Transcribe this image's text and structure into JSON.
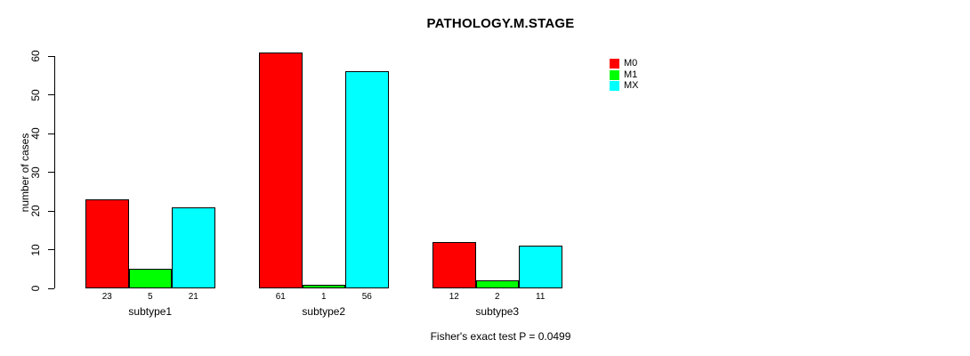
{
  "title": "PATHOLOGY.M.STAGE",
  "footer": "Fisher's exact test P = 0.0499",
  "chart_data": {
    "type": "bar",
    "grouped": true,
    "title": "PATHOLOGY.M.STAGE",
    "xlabel": "",
    "ylabel": "number of cases",
    "categories": [
      "subtype1",
      "subtype2",
      "subtype3"
    ],
    "series": [
      {
        "name": "M0",
        "color": "#FF0000",
        "values": [
          23,
          61,
          12
        ]
      },
      {
        "name": "M1",
        "color": "#00FF00",
        "values": [
          5,
          1,
          2
        ]
      },
      {
        "name": "MX",
        "color": "#00FFFF",
        "values": [
          21,
          56,
          11
        ]
      }
    ],
    "bar_value_labels": [
      [
        "23",
        "61",
        "12"
      ],
      [
        "5",
        "1",
        "2"
      ],
      [
        "21",
        "56",
        "11"
      ]
    ],
    "yticks": [
      0,
      10,
      20,
      30,
      40,
      50,
      60
    ],
    "ylim": [
      0,
      63
    ],
    "grid": false,
    "legend_position": "top-right",
    "annotation": "Fisher's exact test P = 0.0499"
  }
}
